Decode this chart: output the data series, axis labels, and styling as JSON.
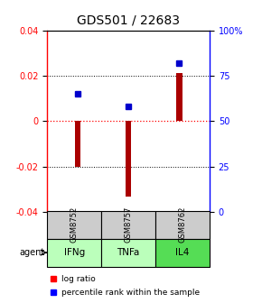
{
  "title": "GDS501 / 22683",
  "samples": [
    "GSM8752",
    "GSM8757",
    "GSM8762"
  ],
  "agents": [
    "IFNg",
    "TNFa",
    "IL4"
  ],
  "log_ratios": [
    -0.02,
    -0.033,
    0.021
  ],
  "percentile_ranks": [
    65,
    58,
    82
  ],
  "ylim_left": [
    -0.04,
    0.04
  ],
  "ylim_right": [
    0,
    100
  ],
  "bar_color": "#aa0000",
  "dot_color": "#0000cc",
  "sample_bg": "#cccccc",
  "agent_colors": [
    "#bbffbb",
    "#bbffbb",
    "#55dd55"
  ],
  "title_fontsize": 10,
  "tick_fontsize": 7,
  "bar_width": 0.12
}
